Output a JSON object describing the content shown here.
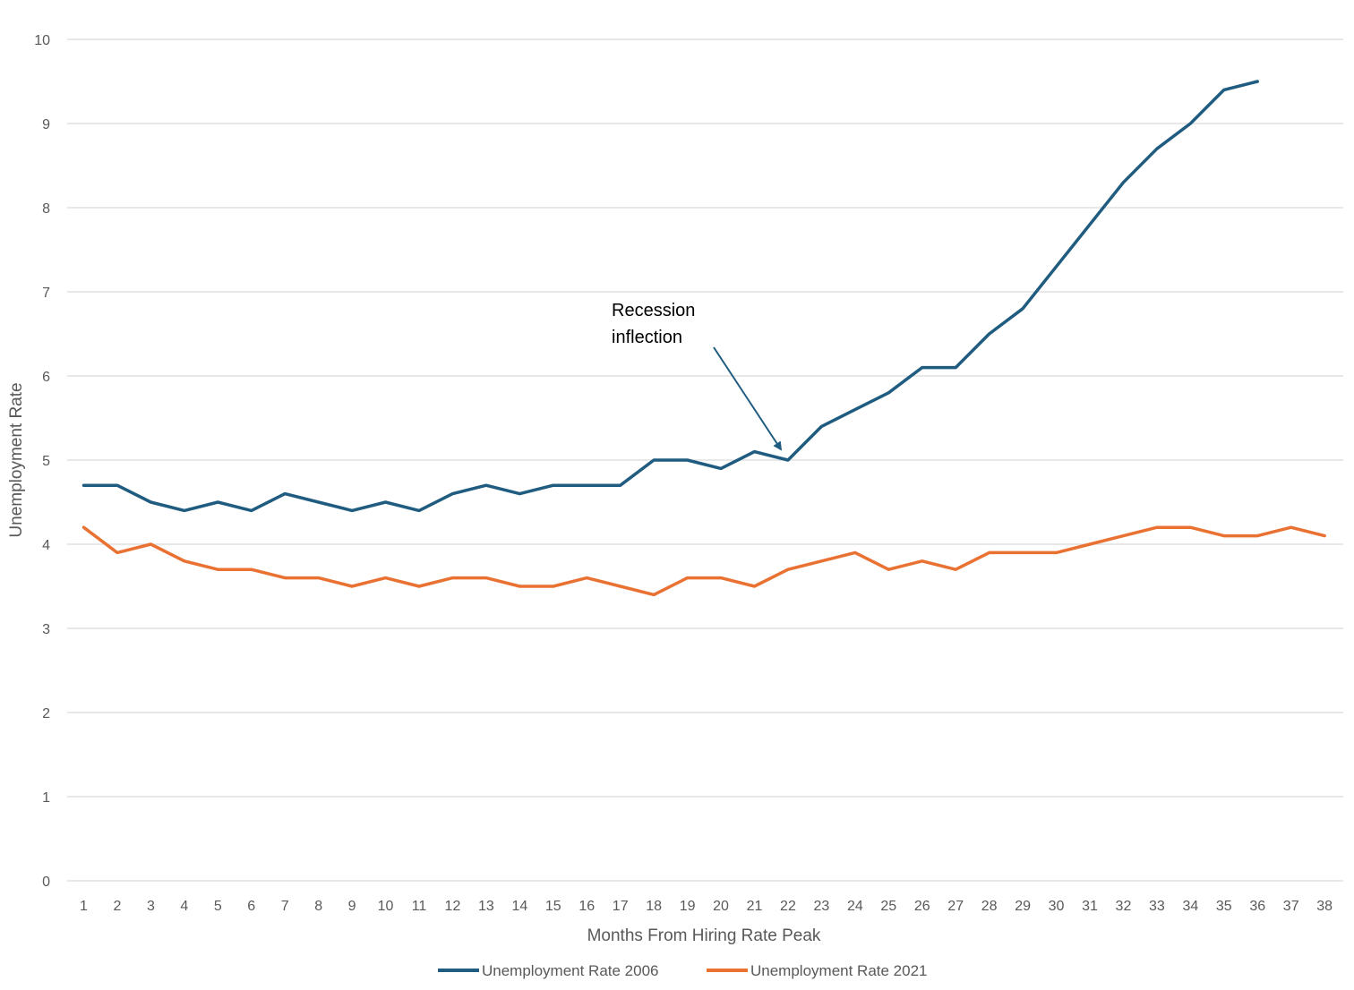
{
  "chart_data": {
    "type": "line",
    "title": "",
    "xlabel": "Months From Hiring Rate Peak",
    "ylabel": "Unemployment Rate",
    "ylim": [
      0,
      10
    ],
    "yticks": [
      0,
      1,
      2,
      3,
      4,
      5,
      6,
      7,
      8,
      9,
      10
    ],
    "grid": true,
    "legend_position": "bottom",
    "x": [
      1,
      2,
      3,
      4,
      5,
      6,
      7,
      8,
      9,
      10,
      11,
      12,
      13,
      14,
      15,
      16,
      17,
      18,
      19,
      20,
      21,
      22,
      23,
      24,
      25,
      26,
      27,
      28,
      29,
      30,
      31,
      32,
      33,
      34,
      35,
      36,
      37,
      38
    ],
    "series": [
      {
        "name": "Unemployment Rate 2006",
        "color": "#1f5c7f",
        "values": [
          4.7,
          4.7,
          4.5,
          4.4,
          4.5,
          4.4,
          4.6,
          4.5,
          4.4,
          4.5,
          4.4,
          4.6,
          4.7,
          4.6,
          4.7,
          4.7,
          4.7,
          5.0,
          5.0,
          4.9,
          5.1,
          5.0,
          5.4,
          5.6,
          5.8,
          6.1,
          6.1,
          6.5,
          6.8,
          7.3,
          7.8,
          8.3,
          8.7,
          9.0,
          9.4,
          9.5,
          null,
          null
        ]
      },
      {
        "name": "Unemployment Rate 2021",
        "color": "#e97132",
        "values": [
          4.2,
          3.9,
          4.0,
          3.8,
          3.7,
          3.7,
          3.6,
          3.6,
          3.5,
          3.6,
          3.5,
          3.6,
          3.6,
          3.5,
          3.5,
          3.6,
          3.5,
          3.4,
          3.6,
          3.6,
          3.5,
          3.7,
          3.8,
          3.9,
          3.7,
          3.8,
          3.7,
          3.9,
          3.9,
          3.9,
          4.0,
          4.1,
          4.2,
          4.2,
          4.1,
          4.1,
          4.2,
          4.1
        ]
      }
    ],
    "annotations": [
      {
        "text_lines": [
          "Recession",
          "inflection"
        ],
        "points_to": {
          "x": 22,
          "y": 5.0
        },
        "color": "#1f5c7f"
      }
    ]
  }
}
